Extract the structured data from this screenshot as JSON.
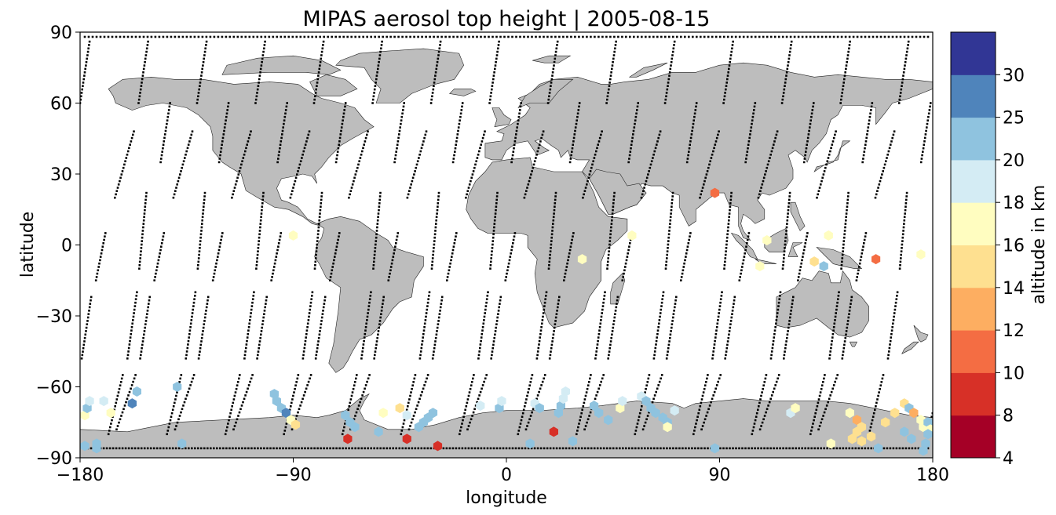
{
  "chart_data": {
    "type": "scatter",
    "title": "MIPAS aerosol top height | 2005-08-15",
    "xlabel": "longitude",
    "ylabel": "latitude",
    "xlim": [
      -180,
      180
    ],
    "ylim": [
      -90,
      90
    ],
    "xticks": [
      -180,
      -90,
      0,
      90,
      180
    ],
    "yticks": [
      -90,
      -60,
      -30,
      0,
      30,
      60,
      90
    ],
    "xtick_labels": [
      "−180",
      "−90",
      "0",
      "90",
      "180"
    ],
    "ytick_labels": [
      "−90",
      "−60",
      "−30",
      "0",
      "30",
      "60",
      "90"
    ],
    "grid": false,
    "background": "world map, land shaded gray",
    "colorbar": {
      "label": "altitude in km",
      "boundaries": [
        4,
        8,
        10,
        12,
        14,
        16,
        18,
        20,
        25,
        30
      ],
      "tick_labels": [
        "4",
        "8",
        "10",
        "12",
        "14",
        "16",
        "18",
        "20",
        "25",
        "30"
      ],
      "colors": [
        "#a50026",
        "#d73027",
        "#f46d43",
        "#fdae61",
        "#fee090",
        "#fffdc0",
        "#d4ecf4",
        "#8fc3df",
        "#4f84bb",
        "#313695"
      ]
    },
    "series": [
      {
        "kind": "aerosol detections (lon, lat, top altitude km)",
        "points": [
          [
            -178,
            -72,
            17
          ],
          [
            -177,
            -69,
            22
          ],
          [
            -176,
            -66,
            19
          ],
          [
            -178,
            -85,
            22
          ],
          [
            -173,
            -86,
            22
          ],
          [
            -173,
            -84,
            22
          ],
          [
            -170,
            -66,
            19
          ],
          [
            -167,
            -71,
            17
          ],
          [
            -156,
            -62,
            22
          ],
          [
            -158,
            -67,
            27
          ],
          [
            -139,
            -60,
            22
          ],
          [
            -137,
            -84,
            22
          ],
          [
            -98,
            -63,
            22
          ],
          [
            -97,
            -66,
            22
          ],
          [
            -95,
            -69,
            22
          ],
          [
            -93,
            -71,
            27
          ],
          [
            -91,
            -74,
            17
          ],
          [
            -89,
            -76,
            15
          ],
          [
            -90,
            4,
            17
          ],
          [
            -68,
            -72,
            22
          ],
          [
            -66,
            -75,
            22
          ],
          [
            -64,
            -77,
            22
          ],
          [
            -67,
            -82,
            8
          ],
          [
            -54,
            -79,
            22
          ],
          [
            -52,
            -71,
            17
          ],
          [
            -45,
            -69,
            15
          ],
          [
            -42,
            -72,
            19
          ],
          [
            -42,
            -82,
            8
          ],
          [
            -37,
            -77,
            22
          ],
          [
            -35,
            -75,
            22
          ],
          [
            -33,
            -73,
            22
          ],
          [
            -31,
            -71,
            22
          ],
          [
            -29,
            -85,
            8
          ],
          [
            -11,
            -68,
            19
          ],
          [
            -3,
            -69,
            22
          ],
          [
            -2,
            -66,
            19
          ],
          [
            10,
            -84,
            22
          ],
          [
            12,
            -67,
            19
          ],
          [
            14,
            -69,
            22
          ],
          [
            20,
            -79,
            8
          ],
          [
            22,
            -71,
            22
          ],
          [
            23,
            -68,
            22
          ],
          [
            24,
            -65,
            19
          ],
          [
            25,
            -62,
            19
          ],
          [
            28,
            -83,
            22
          ],
          [
            32,
            -6,
            17
          ],
          [
            37,
            -68,
            22
          ],
          [
            39,
            -71,
            22
          ],
          [
            43,
            -74,
            22
          ],
          [
            48,
            -69,
            17
          ],
          [
            49,
            -66,
            19
          ],
          [
            53,
            4,
            17
          ],
          [
            57,
            -64,
            19
          ],
          [
            59,
            -66,
            22
          ],
          [
            61,
            -69,
            22
          ],
          [
            63,
            -71,
            22
          ],
          [
            66,
            -73,
            22
          ],
          [
            68,
            -75,
            22
          ],
          [
            68,
            -77,
            17
          ],
          [
            71,
            -70,
            19
          ],
          [
            88,
            22,
            11
          ],
          [
            88,
            -86,
            22
          ],
          [
            107,
            -9,
            17
          ],
          [
            110,
            2,
            17
          ],
          [
            120,
            -71,
            19
          ],
          [
            122,
            -69,
            17
          ],
          [
            130,
            -7,
            15
          ],
          [
            134,
            -9,
            22
          ],
          [
            136,
            4,
            17
          ],
          [
            137,
            -84,
            17
          ],
          [
            145,
            -71,
            17
          ],
          [
            148,
            -74,
            13
          ],
          [
            150,
            -77,
            15
          ],
          [
            148,
            -79,
            15
          ],
          [
            146,
            -82,
            15
          ],
          [
            150,
            -83,
            15
          ],
          [
            154,
            -81,
            15
          ],
          [
            157,
            -86,
            22
          ],
          [
            156,
            -6,
            11
          ],
          [
            160,
            -75,
            15
          ],
          [
            164,
            -71,
            15
          ],
          [
            168,
            -67,
            15
          ],
          [
            170,
            -69,
            22
          ],
          [
            172,
            -71,
            13
          ],
          [
            175,
            -4,
            17
          ],
          [
            175,
            -74,
            17
          ],
          [
            176,
            -77,
            17
          ],
          [
            178,
            -75,
            22
          ],
          [
            179,
            -78,
            17
          ],
          [
            178,
            -80,
            22
          ],
          [
            177,
            -84,
            22
          ],
          [
            176,
            -87,
            22
          ],
          [
            171,
            -82,
            22
          ],
          [
            168,
            -79,
            22
          ]
        ]
      }
    ]
  }
}
